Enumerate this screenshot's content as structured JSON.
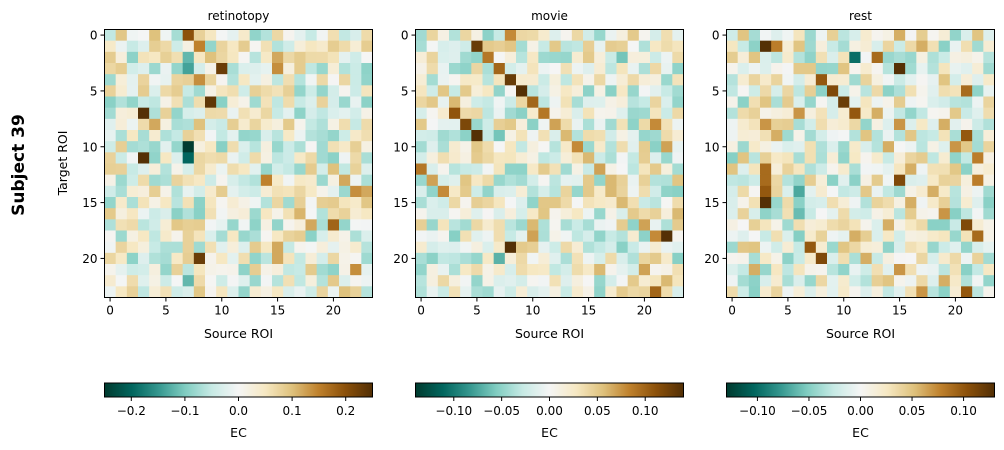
{
  "figure": {
    "suptitle": "Subject 39",
    "ylabel": "Target ROI",
    "xlabel": "Source ROI",
    "colorbar_label": "EC",
    "colormap": [
      "#003c30",
      "#01665e",
      "#35978f",
      "#80cdc1",
      "#c7eae5",
      "#f5f5f5",
      "#f6e8c3",
      "#dfc27d",
      "#bf812d",
      "#8c510a",
      "#543005"
    ]
  },
  "chart_data": [
    {
      "type": "heatmap",
      "title": "retinotopy",
      "n_rois": 24,
      "x_ticks": [
        0,
        5,
        10,
        15,
        20
      ],
      "y_ticks": [
        0,
        5,
        10,
        15,
        20
      ],
      "vlim": [
        -0.25,
        0.25
      ],
      "colorbar_ticks": [
        -0.2,
        -0.1,
        0.0,
        0.1,
        0.2
      ],
      "colorbar_tick_labels": [
        "−0.2",
        "−0.1",
        "0.0",
        "0.1",
        "0.2"
      ],
      "cells": [
        [
          0,
          7,
          0.2
        ],
        [
          0,
          8,
          0.08
        ],
        [
          0,
          4,
          0.1
        ],
        [
          0,
          18,
          -0.05
        ],
        [
          1,
          5,
          0.07
        ],
        [
          1,
          8,
          0.15
        ],
        [
          1,
          11,
          0.05
        ],
        [
          1,
          14,
          0.06
        ],
        [
          2,
          7,
          -0.12
        ],
        [
          2,
          9,
          0.1
        ],
        [
          2,
          15,
          0.12
        ],
        [
          3,
          7,
          -0.14
        ],
        [
          3,
          10,
          0.23
        ],
        [
          3,
          15,
          0.14
        ],
        [
          4,
          8,
          0.14
        ],
        [
          4,
          12,
          0.05
        ],
        [
          5,
          5,
          0.07
        ],
        [
          5,
          7,
          -0.05
        ],
        [
          6,
          9,
          0.24
        ],
        [
          6,
          6,
          0.06
        ],
        [
          7,
          3,
          0.25
        ],
        [
          7,
          5,
          0.08
        ],
        [
          7,
          12,
          0.06
        ],
        [
          7,
          15,
          -0.05
        ],
        [
          8,
          4,
          0.12
        ],
        [
          8,
          8,
          0.1
        ],
        [
          8,
          16,
          0.09
        ],
        [
          9,
          2,
          0.05
        ],
        [
          9,
          7,
          0.08
        ],
        [
          9,
          15,
          -0.06
        ],
        [
          10,
          7,
          -0.25
        ],
        [
          10,
          9,
          0.05
        ],
        [
          10,
          20,
          0.06
        ],
        [
          11,
          3,
          0.25
        ],
        [
          11,
          7,
          -0.2
        ],
        [
          11,
          18,
          0.07
        ],
        [
          12,
          1,
          0.08
        ],
        [
          12,
          12,
          0.05
        ],
        [
          12,
          20,
          0.1
        ],
        [
          13,
          1,
          -0.08
        ],
        [
          13,
          14,
          0.15
        ],
        [
          13,
          21,
          0.12
        ],
        [
          14,
          0,
          -0.04
        ],
        [
          14,
          22,
          0.14
        ],
        [
          14,
          23,
          0.12
        ],
        [
          15,
          5,
          0.05
        ],
        [
          15,
          6,
          -0.06
        ],
        [
          16,
          9,
          0.06
        ],
        [
          16,
          17,
          0.11
        ],
        [
          17,
          1,
          0.06
        ],
        [
          17,
          18,
          0.12
        ],
        [
          17,
          20,
          0.18
        ],
        [
          18,
          1,
          -0.08
        ],
        [
          18,
          3,
          0.05
        ],
        [
          18,
          13,
          -0.07
        ],
        [
          19,
          2,
          0.05
        ],
        [
          19,
          7,
          0.08
        ],
        [
          19,
          15,
          0.12
        ],
        [
          20,
          8,
          0.23
        ],
        [
          20,
          15,
          0.12
        ],
        [
          20,
          10,
          0.05
        ],
        [
          21,
          6,
          0.08
        ],
        [
          21,
          17,
          -0.05
        ],
        [
          21,
          22,
          0.14
        ],
        [
          22,
          7,
          -0.12
        ],
        [
          22,
          16,
          0.06
        ],
        [
          23,
          2,
          0.08
        ],
        [
          23,
          15,
          0.05
        ],
        [
          23,
          21,
          0.1
        ],
        [
          23,
          22,
          0.08
        ]
      ]
    },
    {
      "type": "heatmap",
      "title": "movie",
      "n_rois": 24,
      "x_ticks": [
        0,
        5,
        10,
        15,
        20
      ],
      "y_ticks": [
        0,
        5,
        10,
        15,
        20
      ],
      "vlim": [
        -0.14,
        0.14
      ],
      "colorbar_ticks": [
        -0.1,
        -0.05,
        0.0,
        0.05,
        0.1
      ],
      "colorbar_tick_labels": [
        "−0.10",
        "−0.05",
        "0.00",
        "0.05",
        "0.10"
      ],
      "cells": [
        [
          0,
          8,
          0.08
        ],
        [
          0,
          14,
          0.04
        ],
        [
          1,
          5,
          0.13
        ],
        [
          1,
          6,
          0.05
        ],
        [
          1,
          23,
          0.03
        ],
        [
          2,
          6,
          0.09
        ],
        [
          2,
          18,
          -0.06
        ],
        [
          2,
          15,
          0.05
        ],
        [
          3,
          7,
          0.1
        ],
        [
          3,
          23,
          -0.05
        ],
        [
          4,
          8,
          0.13
        ],
        [
          4,
          16,
          0.04
        ],
        [
          5,
          9,
          0.14
        ],
        [
          5,
          4,
          0.05
        ],
        [
          6,
          10,
          0.1
        ],
        [
          6,
          3,
          0.06
        ],
        [
          7,
          3,
          0.11
        ],
        [
          7,
          11,
          0.09
        ],
        [
          8,
          4,
          0.12
        ],
        [
          8,
          12,
          0.07
        ],
        [
          8,
          21,
          0.08
        ],
        [
          9,
          5,
          0.14
        ],
        [
          9,
          7,
          -0.06
        ],
        [
          9,
          13,
          0.06
        ],
        [
          10,
          14,
          0.08
        ],
        [
          10,
          22,
          0.07
        ],
        [
          11,
          15,
          0.06
        ],
        [
          11,
          6,
          0.04
        ],
        [
          12,
          0,
          0.09
        ],
        [
          12,
          16,
          0.07
        ],
        [
          12,
          21,
          0.05
        ],
        [
          13,
          1,
          0.07
        ],
        [
          13,
          17,
          0.06
        ],
        [
          14,
          2,
          0.08
        ],
        [
          14,
          17,
          0.06
        ],
        [
          14,
          4,
          0.05
        ],
        [
          15,
          3,
          0.04
        ],
        [
          15,
          18,
          0.06
        ],
        [
          16,
          19,
          0.05
        ],
        [
          16,
          23,
          0.06
        ],
        [
          17,
          10,
          0.06
        ],
        [
          17,
          20,
          0.07
        ],
        [
          17,
          5,
          0.04
        ],
        [
          18,
          10,
          0.07
        ],
        [
          18,
          21,
          0.08
        ],
        [
          18,
          22,
          0.14
        ],
        [
          19,
          8,
          0.14
        ],
        [
          19,
          9,
          0.05
        ],
        [
          20,
          7,
          -0.07
        ],
        [
          20,
          0,
          -0.04
        ],
        [
          20,
          21,
          0.05
        ],
        [
          21,
          16,
          0.06
        ],
        [
          21,
          20,
          0.07
        ],
        [
          22,
          2,
          0.04
        ],
        [
          22,
          19,
          0.05
        ],
        [
          22,
          22,
          0.06
        ],
        [
          23,
          19,
          0.04
        ],
        [
          23,
          21,
          0.1
        ]
      ]
    },
    {
      "type": "heatmap",
      "title": "rest",
      "n_rois": 24,
      "x_ticks": [
        0,
        5,
        10,
        15,
        20
      ],
      "y_ticks": [
        0,
        5,
        10,
        15,
        20
      ],
      "vlim": [
        -0.13,
        0.13
      ],
      "colorbar_ticks": [
        -0.1,
        -0.05,
        0.0,
        0.05,
        0.1
      ],
      "colorbar_tick_labels": [
        "−0.10",
        "−0.05",
        "0.00",
        "0.05",
        "0.10"
      ],
      "cells": [
        [
          0,
          1,
          0.05
        ],
        [
          0,
          15,
          0.06
        ],
        [
          0,
          22,
          0.05
        ],
        [
          1,
          3,
          0.13
        ],
        [
          1,
          4,
          0.08
        ],
        [
          1,
          6,
          0.05
        ],
        [
          1,
          17,
          0.06
        ],
        [
          2,
          2,
          0.05
        ],
        [
          2,
          11,
          -0.1
        ],
        [
          2,
          13,
          0.09
        ],
        [
          3,
          15,
          0.13
        ],
        [
          3,
          10,
          0.05
        ],
        [
          4,
          8,
          0.1
        ],
        [
          4,
          4,
          0.04
        ],
        [
          4,
          19,
          0.05
        ],
        [
          5,
          9,
          0.11
        ],
        [
          5,
          21,
          0.09
        ],
        [
          6,
          10,
          0.12
        ],
        [
          6,
          3,
          0.05
        ],
        [
          7,
          11,
          0.1
        ],
        [
          7,
          6,
          0.07
        ],
        [
          7,
          13,
          0.06
        ],
        [
          8,
          3,
          0.07
        ],
        [
          8,
          15,
          0.07
        ],
        [
          8,
          19,
          0.06
        ],
        [
          9,
          4,
          0.06
        ],
        [
          9,
          12,
          0.05
        ],
        [
          9,
          21,
          0.1
        ],
        [
          10,
          14,
          0.06
        ],
        [
          10,
          20,
          0.07
        ],
        [
          10,
          23,
          0.04
        ],
        [
          11,
          1,
          0.05
        ],
        [
          11,
          22,
          0.08
        ],
        [
          12,
          0,
          0.05
        ],
        [
          12,
          3,
          0.09
        ],
        [
          12,
          16,
          0.06
        ],
        [
          13,
          3,
          0.09
        ],
        [
          13,
          15,
          0.11
        ],
        [
          13,
          22,
          0.08
        ],
        [
          14,
          3,
          0.1
        ],
        [
          14,
          6,
          -0.07
        ],
        [
          14,
          18,
          0.06
        ],
        [
          15,
          3,
          0.13
        ],
        [
          15,
          16,
          0.06
        ],
        [
          16,
          6,
          -0.06
        ],
        [
          16,
          19,
          0.07
        ],
        [
          17,
          14,
          0.06
        ],
        [
          17,
          21,
          0.11
        ],
        [
          18,
          6,
          -0.05
        ],
        [
          18,
          11,
          0.06
        ],
        [
          18,
          22,
          0.09
        ],
        [
          19,
          7,
          0.1
        ],
        [
          19,
          2,
          0.05
        ],
        [
          20,
          8,
          0.11
        ],
        [
          20,
          12,
          0.06
        ],
        [
          21,
          2,
          0.06
        ],
        [
          21,
          15,
          0.07
        ],
        [
          22,
          14,
          0.05
        ],
        [
          22,
          19,
          0.06
        ],
        [
          23,
          17,
          0.07
        ],
        [
          23,
          21,
          0.1
        ]
      ]
    }
  ]
}
